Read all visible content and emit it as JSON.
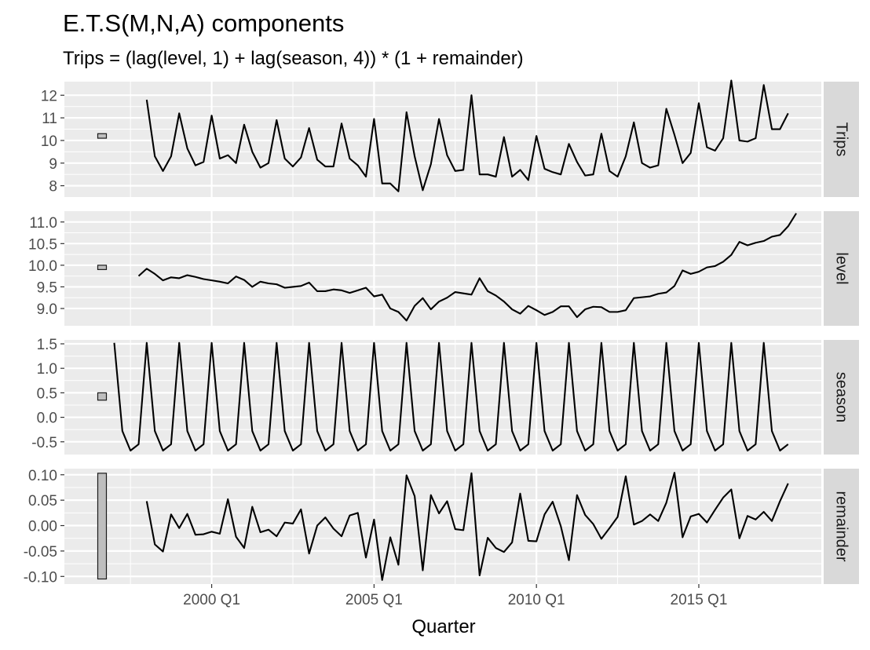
{
  "chart_data": {
    "type": "line",
    "title": "E.T.S(M,N,A) components",
    "subtitle": "Trips = (lag(level, 1) + lag(season, 4)) * (1 + remainder)",
    "xlabel": "Quarter",
    "x_ticks": [
      "2000 Q1",
      "2005 Q1",
      "2010 Q1",
      "2015 Q1"
    ],
    "x_start": "1997 Q1",
    "grid": true,
    "colors": {
      "panel_bg": "#ebebeb",
      "grid": "#ffffff",
      "strip_bg": "#d9d9d9",
      "line": "#000000",
      "scale_bar_fill": "#bebebe",
      "tick_text": "#4d4d4d"
    },
    "panels": [
      {
        "name": "Trips",
        "ylim": [
          7.5,
          12.6
        ],
        "yticks": [
          8,
          9,
          10,
          11,
          12
        ],
        "ytick_labels": [
          "8",
          "9",
          "10",
          "11",
          "12"
        ],
        "scale_bar": [
          10.1,
          10.3
        ],
        "series_start_quarter": "1998 Q1",
        "values": [
          11.8,
          9.3,
          8.65,
          9.3,
          11.2,
          9.65,
          8.9,
          9.05,
          11.1,
          9.2,
          9.35,
          9.0,
          10.7,
          9.5,
          8.8,
          9.0,
          10.9,
          9.2,
          8.85,
          9.25,
          10.55,
          9.15,
          8.85,
          8.85,
          10.75,
          9.2,
          8.9,
          8.4,
          10.95,
          8.1,
          8.1,
          7.75,
          11.25,
          9.3,
          7.8,
          8.95,
          10.95,
          9.35,
          8.65,
          8.7,
          12.0,
          8.5,
          8.5,
          8.4,
          10.15,
          8.4,
          8.7,
          8.25,
          10.2,
          8.75,
          8.6,
          8.5,
          9.85,
          9.05,
          8.45,
          8.5,
          10.3,
          8.65,
          8.4,
          9.3,
          10.8,
          9.0,
          8.8,
          8.9,
          11.4,
          10.25,
          9.0,
          9.45,
          11.65,
          9.7,
          9.55,
          10.1,
          12.65,
          10.0,
          9.95,
          10.1,
          12.45,
          10.5,
          10.5,
          11.2
        ]
      },
      {
        "name": "level",
        "ylim": [
          8.6,
          11.25
        ],
        "yticks": [
          9.0,
          9.5,
          10.0,
          10.5,
          11.0
        ],
        "ytick_labels": [
          "9.0",
          "9.5",
          "10.0",
          "10.5",
          "11.0"
        ],
        "scale_bar": [
          9.9,
          10.0
        ],
        "series_start_quarter": "1997 Q4",
        "values": [
          9.75,
          9.92,
          9.8,
          9.65,
          9.72,
          9.7,
          9.77,
          9.73,
          9.68,
          9.65,
          9.62,
          9.58,
          9.74,
          9.66,
          9.5,
          9.62,
          9.58,
          9.56,
          9.48,
          9.5,
          9.52,
          9.6,
          9.4,
          9.4,
          9.44,
          9.42,
          9.36,
          9.42,
          9.48,
          9.28,
          9.32,
          9.0,
          8.92,
          8.72,
          9.06,
          9.24,
          8.98,
          9.16,
          9.25,
          9.38,
          9.35,
          9.32,
          9.7,
          9.4,
          9.3,
          9.16,
          8.98,
          8.88,
          9.06,
          8.96,
          8.85,
          8.92,
          9.05,
          9.05,
          8.8,
          8.98,
          9.04,
          9.03,
          8.92,
          8.92,
          8.96,
          9.24,
          9.26,
          9.28,
          9.34,
          9.37,
          9.52,
          9.88,
          9.8,
          9.85,
          9.95,
          9.98,
          10.08,
          10.24,
          10.54,
          10.46,
          10.52,
          10.56,
          10.66,
          10.7,
          10.9,
          11.2
        ]
      },
      {
        "name": "season",
        "ylim": [
          -0.76,
          1.58
        ],
        "yticks": [
          -0.5,
          0.0,
          0.5,
          1.0,
          1.5
        ],
        "ytick_labels": [
          "-0.5",
          "0.0",
          "0.5",
          "1.0",
          "1.5"
        ],
        "scale_bar": [
          0.35,
          0.5
        ],
        "series_start_quarter": "1997 Q1",
        "values": [
          1.52,
          -0.28,
          -0.68,
          -0.55,
          1.52,
          -0.28,
          -0.68,
          -0.55,
          1.52,
          -0.28,
          -0.68,
          -0.55,
          1.52,
          -0.28,
          -0.68,
          -0.55,
          1.52,
          -0.28,
          -0.68,
          -0.55,
          1.52,
          -0.28,
          -0.68,
          -0.55,
          1.52,
          -0.28,
          -0.68,
          -0.55,
          1.52,
          -0.28,
          -0.68,
          -0.55,
          1.52,
          -0.28,
          -0.68,
          -0.55,
          1.52,
          -0.28,
          -0.68,
          -0.55,
          1.52,
          -0.28,
          -0.68,
          -0.55,
          1.52,
          -0.28,
          -0.68,
          -0.55,
          1.52,
          -0.28,
          -0.68,
          -0.55,
          1.52,
          -0.28,
          -0.68,
          -0.55,
          1.52,
          -0.28,
          -0.68,
          -0.55,
          1.52,
          -0.28,
          -0.68,
          -0.55,
          1.52,
          -0.28,
          -0.68,
          -0.55,
          1.52,
          -0.28,
          -0.68,
          -0.55,
          1.52,
          -0.28,
          -0.68,
          -0.55,
          1.52,
          -0.28,
          -0.68,
          -0.55,
          1.52,
          -0.28,
          -0.68,
          -0.55
        ]
      },
      {
        "name": "remainder",
        "ylim": [
          -0.115,
          0.112
        ],
        "yticks": [
          -0.1,
          -0.05,
          0.0,
          0.05,
          0.1
        ],
        "ytick_labels": [
          "-0.10",
          "-0.05",
          "0.00",
          "0.05",
          "0.10"
        ],
        "scale_bar": [
          -0.105,
          0.103
        ],
        "series_start_quarter": "1998 Q1",
        "values": [
          0.048,
          -0.037,
          -0.051,
          0.022,
          -0.005,
          0.023,
          -0.018,
          -0.017,
          -0.012,
          -0.016,
          0.052,
          -0.022,
          -0.044,
          0.037,
          -0.013,
          -0.008,
          -0.021,
          0.006,
          0.004,
          0.032,
          -0.055,
          0.0,
          0.016,
          -0.006,
          -0.021,
          0.02,
          0.025,
          -0.063,
          0.012,
          -0.107,
          -0.023,
          -0.077,
          0.099,
          0.058,
          -0.088,
          0.06,
          0.024,
          0.048,
          -0.007,
          -0.009,
          0.103,
          -0.098,
          -0.024,
          -0.044,
          -0.052,
          -0.033,
          0.063,
          -0.03,
          -0.031,
          0.022,
          0.047,
          -0.001,
          -0.068,
          0.06,
          0.021,
          0.003,
          -0.026,
          -0.005,
          0.017,
          0.097,
          0.002,
          0.009,
          0.022,
          0.009,
          0.045,
          0.104,
          -0.023,
          0.018,
          0.023,
          0.006,
          0.031,
          0.055,
          0.071,
          -0.025,
          0.019,
          0.012,
          0.027,
          0.009,
          0.048,
          0.083
        ]
      }
    ]
  }
}
